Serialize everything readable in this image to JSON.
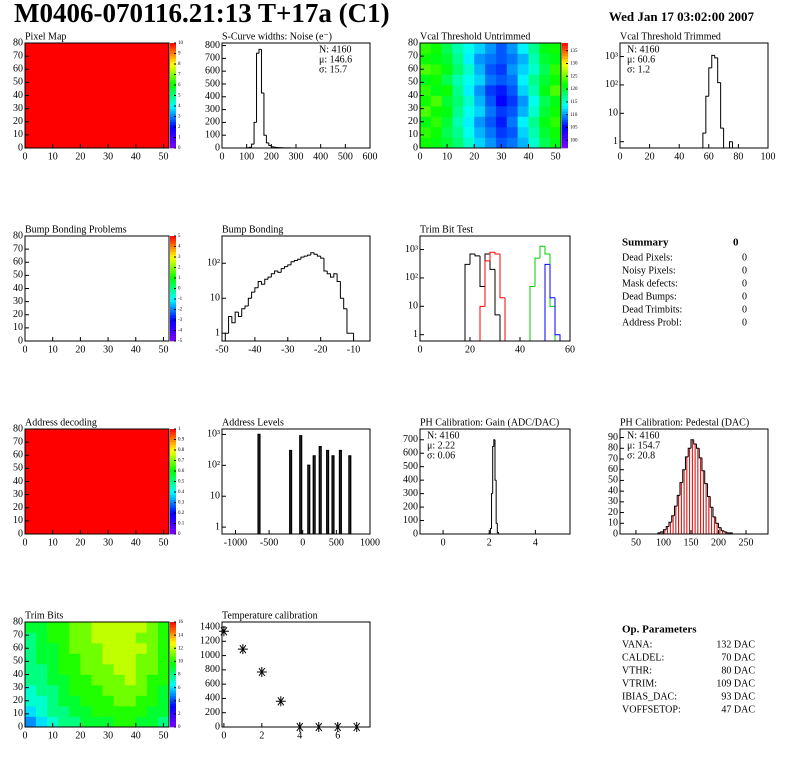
{
  "title": "M0406-070116.21:13 T+17a (C1)",
  "date": "Wed Jan 17 03:02:00 2007",
  "chart_data": [
    {
      "type": "heatmap",
      "title": "Pixel Map",
      "xlim": [
        0,
        52
      ],
      "ylim": [
        0,
        80
      ],
      "xticks": [
        0,
        10,
        20,
        30,
        40,
        50
      ],
      "yticks": [
        0,
        10,
        20,
        30,
        40,
        50,
        60,
        70,
        80
      ],
      "zlim": [
        0,
        10
      ],
      "zticks": [
        0,
        1,
        2,
        3,
        4,
        5,
        6,
        7,
        8,
        9,
        10
      ],
      "z": [
        [
          10
        ]
      ]
    },
    {
      "type": "histogram",
      "title": "S-Curve widths: Noise (e⁻)",
      "xlim": [
        0,
        600
      ],
      "ylim": [
        0,
        820
      ],
      "xticks": [
        0,
        100,
        200,
        300,
        400,
        500,
        600
      ],
      "yticks": [
        0,
        100,
        200,
        300,
        400,
        500,
        600,
        700,
        800
      ],
      "stats": [
        "N: 4160",
        "μ: 146.6",
        "σ: 15.7"
      ],
      "stats_corner": "right",
      "bins": [
        90,
        100,
        110,
        120,
        130,
        140,
        150,
        160,
        170,
        180,
        190,
        200,
        210,
        220,
        230,
        240,
        250,
        260,
        270,
        280,
        290,
        300
      ],
      "series": [
        {
          "color": "#000000",
          "values": [
            0,
            2,
            5,
            30,
            200,
            740,
            770,
            430,
            100,
            40,
            20,
            10,
            6,
            4,
            3,
            2,
            1,
            1,
            1,
            0,
            0
          ]
        }
      ]
    },
    {
      "type": "heatmap",
      "title": "Vcal Threshold Untrimmed",
      "xlim": [
        0,
        52
      ],
      "ylim": [
        0,
        80
      ],
      "xticks": [
        0,
        10,
        20,
        30,
        40,
        50
      ],
      "yticks": [
        0,
        10,
        20,
        30,
        40,
        50,
        60,
        70,
        80
      ],
      "zlim": [
        97,
        138
      ],
      "zticks": [
        100,
        105,
        110,
        115,
        120,
        125,
        130,
        135
      ],
      "z": [
        [
          122,
          121,
          120,
          118,
          115,
          112,
          110,
          108,
          109,
          111,
          115,
          119,
          121
        ],
        [
          123,
          122,
          119,
          117,
          114,
          111,
          109,
          107,
          108,
          112,
          116,
          120,
          122
        ],
        [
          121,
          123,
          120,
          116,
          113,
          110,
          108,
          106,
          109,
          113,
          117,
          121,
          123
        ],
        [
          124,
          122,
          121,
          117,
          114,
          112,
          109,
          107,
          108,
          111,
          115,
          120,
          122
        ],
        [
          122,
          124,
          120,
          118,
          115,
          111,
          108,
          105,
          107,
          110,
          114,
          119,
          121
        ],
        [
          123,
          121,
          122,
          117,
          113,
          110,
          107,
          106,
          108,
          112,
          116,
          121,
          124
        ],
        [
          121,
          122,
          119,
          116,
          114,
          112,
          109,
          108,
          109,
          113,
          117,
          120,
          122
        ],
        [
          124,
          123,
          121,
          118,
          115,
          111,
          108,
          107,
          110,
          112,
          115,
          119,
          123
        ],
        [
          122,
          121,
          120,
          117,
          113,
          110,
          109,
          108,
          109,
          111,
          116,
          120,
          121
        ],
        [
          123,
          122,
          119,
          116,
          114,
          112,
          110,
          108,
          110,
          113,
          117,
          121,
          122
        ]
      ]
    },
    {
      "type": "histogram",
      "title": "Vcal Threshold Trimmed",
      "log": true,
      "xlim": [
        0,
        100
      ],
      "ylim": [
        0.6,
        3000
      ],
      "xticks": [
        0,
        20,
        40,
        60,
        80,
        100
      ],
      "yticks": [
        1,
        10,
        {
          "value": 100,
          "label": "10²"
        },
        {
          "value": 1000,
          "label": "10³"
        }
      ],
      "stats": [
        "N: 4160",
        "μ: 60.6",
        "σ:  1.2"
      ],
      "stats_corner": "left",
      "bins": [
        50,
        52,
        54,
        56,
        58,
        60,
        62,
        64,
        66,
        68,
        70,
        72,
        74,
        76,
        78,
        80
      ],
      "series": [
        {
          "color": "#000000",
          "values": [
            0,
            0,
            0,
            2,
            40,
            400,
            1100,
            900,
            120,
            3,
            0,
            0,
            1,
            0,
            0
          ]
        }
      ]
    },
    {
      "type": "heatmap",
      "title": "Bump Bonding Problems",
      "xlim": [
        0,
        52
      ],
      "ylim": [
        0,
        80
      ],
      "xticks": [
        0,
        10,
        20,
        30,
        40,
        50
      ],
      "yticks": [
        0,
        10,
        20,
        30,
        40,
        50,
        60,
        70,
        80
      ],
      "zlim": [
        -5,
        5
      ],
      "zticks": [
        -5,
        -4,
        -3,
        -2,
        -1,
        0,
        1,
        2,
        3,
        4,
        5
      ],
      "z": []
    },
    {
      "type": "histogram",
      "title": "Bump Bonding",
      "log": true,
      "xlim": [
        -50,
        -5
      ],
      "ylim": [
        0.6,
        600
      ],
      "xticks": [
        -50,
        -40,
        -30,
        -20,
        -10
      ],
      "yticks": [
        1,
        10,
        {
          "value": 100,
          "label": "10²"
        }
      ],
      "bins": [
        -49,
        -48,
        -47,
        -46,
        -45,
        -44,
        -43,
        -42,
        -41,
        -40,
        -39,
        -38,
        -37,
        -36,
        -35,
        -34,
        -33,
        -32,
        -31,
        -30,
        -29,
        -28,
        -27,
        -26,
        -25,
        -24,
        -23,
        -22,
        -21,
        -20,
        -19,
        -18,
        -17,
        -16,
        -15,
        -14,
        -13,
        -12,
        -11,
        -10,
        -9
      ],
      "series": [
        {
          "color": "#000000",
          "values": [
            1,
            3,
            2,
            4,
            3,
            5,
            6,
            10,
            15,
            20,
            30,
            25,
            35,
            40,
            50,
            60,
            55,
            70,
            80,
            90,
            110,
            120,
            130,
            150,
            160,
            170,
            200,
            180,
            160,
            140,
            60,
            50,
            40,
            50,
            30,
            10,
            5,
            1,
            1,
            0
          ]
        }
      ]
    },
    {
      "type": "histogram",
      "title": "Trim Bit Test",
      "log": true,
      "xlim": [
        0,
        60
      ],
      "ylim": [
        0.6,
        3000
      ],
      "xticks": [
        0,
        20,
        40,
        60
      ],
      "yticks": [
        1,
        10,
        {
          "value": 100,
          "label": "10²"
        },
        {
          "value": 1000,
          "label": "10³"
        }
      ],
      "bins": [
        14,
        16,
        18,
        20,
        22,
        24,
        26,
        28,
        30,
        32,
        34,
        36,
        38,
        40,
        42,
        44,
        46,
        48,
        50,
        52,
        54,
        56
      ],
      "series": [
        {
          "color": "#000000",
          "values": [
            0,
            0,
            300,
            700,
            600,
            50,
            700,
            200,
            5,
            0,
            0,
            0,
            0,
            0,
            0,
            0,
            0,
            0,
            0,
            0,
            0
          ]
        },
        {
          "color": "#ff0000",
          "values": [
            0,
            0,
            0,
            0,
            0,
            10,
            400,
            800,
            700,
            20,
            0,
            0,
            0,
            0,
            0,
            0,
            0,
            0,
            0,
            0,
            0
          ]
        },
        {
          "color": "#00cc00",
          "values": [
            0,
            0,
            0,
            0,
            0,
            0,
            0,
            0,
            0,
            0,
            0,
            0,
            0,
            0,
            0,
            50,
            500,
            1300,
            700,
            10,
            0
          ]
        },
        {
          "color": "#0000ff",
          "values": [
            0,
            0,
            0,
            0,
            0,
            0,
            0,
            0,
            0,
            0,
            0,
            0,
            0,
            0,
            0,
            0,
            0,
            0,
            300,
            20,
            1
          ]
        }
      ]
    },
    {
      "type": "heatmap",
      "title": "Address decoding",
      "xlim": [
        0,
        52
      ],
      "ylim": [
        0,
        80
      ],
      "xticks": [
        0,
        10,
        20,
        30,
        40,
        50
      ],
      "yticks": [
        0,
        10,
        20,
        30,
        40,
        50,
        60,
        70,
        80
      ],
      "zlim": [
        0,
        1
      ],
      "zticks": [
        0,
        0.1,
        0.2,
        0.3,
        0.4,
        0.5,
        0.6,
        0.7,
        0.8,
        0.9,
        1
      ],
      "z": [
        [
          1
        ]
      ]
    },
    {
      "type": "spikes",
      "title": "Address Levels",
      "log": true,
      "xlim": [
        -1200,
        1000
      ],
      "ylim": [
        0.6,
        1500
      ],
      "xticks": [
        -1000,
        -500,
        0,
        500,
        1000
      ],
      "yticks": [
        1,
        10,
        {
          "value": 100,
          "label": "10²"
        },
        {
          "value": 1000,
          "label": "10³"
        }
      ],
      "x": [
        -650,
        -180,
        -30,
        90,
        170,
        260,
        370,
        450,
        560,
        700
      ],
      "values": [
        1000,
        300,
        900,
        100,
        200,
        400,
        300,
        200,
        300,
        200
      ]
    },
    {
      "type": "histogram",
      "title": "PH Calibration: Gain (ADC/DAC)",
      "xlim": [
        -1,
        5.5
      ],
      "ylim": [
        0,
        780
      ],
      "xticks": [
        0,
        2,
        4
      ],
      "yticks": [
        0,
        100,
        200,
        300,
        400,
        500,
        600,
        700
      ],
      "stats": [
        "N: 4160",
        "μ: 2.22",
        "σ: 0.06"
      ],
      "stats_corner": "left",
      "bins": [
        2.0,
        2.05,
        2.1,
        2.15,
        2.2,
        2.25,
        2.3,
        2.35,
        2.4
      ],
      "series": [
        {
          "color": "#000000",
          "values": [
            5,
            40,
            300,
            650,
            700,
            400,
            80,
            10
          ]
        }
      ]
    },
    {
      "type": "histogram",
      "title": "PH Calibration: Pedestal (DAC)",
      "xlim": [
        21,
        290
      ],
      "ylim": [
        0,
        98
      ],
      "xticks": [
        50,
        100,
        150,
        200,
        250
      ],
      "yticks": [
        0,
        10,
        20,
        30,
        40,
        50,
        60,
        70,
        80,
        90
      ],
      "stats": [
        "N: 4160",
        {
          "text": "μ: 154.7",
          "color": "#e00000"
        },
        {
          "text": "σ: 20.8",
          "color": "#e00000"
        }
      ],
      "stats_corner": "left",
      "inner_color": "#d00000",
      "bins": [
        90,
        95,
        100,
        105,
        110,
        115,
        120,
        125,
        130,
        135,
        140,
        145,
        150,
        155,
        160,
        165,
        170,
        175,
        180,
        185,
        190,
        195,
        200,
        205,
        210,
        215,
        220,
        225
      ],
      "series": [
        {
          "color": "#000000",
          "values": [
            1,
            2,
            4,
            7,
            11,
            17,
            26,
            36,
            48,
            60,
            72,
            80,
            88,
            84,
            80,
            71,
            59,
            47,
            35,
            25,
            16,
            10,
            6,
            3,
            2,
            1,
            1
          ]
        }
      ]
    },
    {
      "type": "heatmap",
      "title": "Trim Bits",
      "xlim": [
        0,
        52
      ],
      "ylim": [
        0,
        80
      ],
      "xticks": [
        0,
        10,
        20,
        30,
        40,
        50
      ],
      "yticks": [
        0,
        10,
        20,
        30,
        40,
        50,
        60,
        70,
        80
      ],
      "zlim": [
        0,
        16
      ],
      "zticks": [
        0,
        2,
        4,
        6,
        8,
        10,
        12,
        14,
        16
      ],
      "z": [
        [
          5,
          6,
          7,
          8,
          8,
          9,
          9,
          9,
          10,
          10,
          9,
          9,
          8
        ],
        [
          6,
          7,
          8,
          8,
          9,
          9,
          10,
          10,
          10,
          10,
          10,
          9,
          9
        ],
        [
          7,
          7,
          8,
          9,
          9,
          10,
          10,
          10,
          11,
          11,
          10,
          10,
          9
        ],
        [
          7,
          8,
          8,
          9,
          10,
          10,
          10,
          11,
          11,
          11,
          11,
          10,
          9
        ],
        [
          8,
          8,
          9,
          9,
          10,
          10,
          11,
          11,
          11,
          12,
          11,
          10,
          10
        ],
        [
          8,
          8,
          9,
          10,
          10,
          11,
          11,
          11,
          12,
          12,
          11,
          11,
          10
        ],
        [
          8,
          9,
          9,
          10,
          10,
          11,
          11,
          12,
          12,
          12,
          11,
          11,
          10
        ],
        [
          8,
          9,
          9,
          10,
          11,
          11,
          11,
          12,
          12,
          12,
          12,
          11,
          10
        ],
        [
          8,
          9,
          10,
          10,
          11,
          11,
          12,
          12,
          12,
          12,
          11,
          11,
          10
        ],
        [
          9,
          9,
          10,
          10,
          11,
          11,
          12,
          12,
          12,
          12,
          12,
          11,
          10
        ]
      ]
    },
    {
      "type": "scatter",
      "title": "Temperature calibration",
      "xlim": [
        -0.1,
        7.7
      ],
      "ylim": [
        0,
        1470
      ],
      "xticks": [
        0,
        2,
        4,
        6
      ],
      "yticks": [
        0,
        200,
        400,
        600,
        800,
        1000,
        1200,
        1400
      ],
      "x": [
        0,
        1,
        2,
        3,
        4,
        5,
        6,
        7
      ],
      "values": [
        1340,
        1090,
        770,
        360,
        0,
        0,
        0,
        0
      ]
    }
  ],
  "summary": {
    "title": "Summary",
    "value": 0,
    "rows": [
      {
        "label": "Dead Pixels:",
        "value": 0
      },
      {
        "label": "Noisy Pixels:",
        "value": 0
      },
      {
        "label": "Mask defects:",
        "value": 0
      },
      {
        "label": "Dead Bumps:",
        "value": 0
      },
      {
        "label": "Dead Trimbits:",
        "value": 0
      },
      {
        "label": "Address Probl:",
        "value": 0
      }
    ]
  },
  "op_parameters": {
    "title": "Op. Parameters",
    "rows": [
      {
        "label": "VANA:",
        "value": "132 DAC"
      },
      {
        "label": "CALDEL:",
        "value": "70 DAC"
      },
      {
        "label": "VTHR:",
        "value": "80 DAC"
      },
      {
        "label": "VTRIM:",
        "value": "109 DAC"
      },
      {
        "label": "IBIAS_DAC:",
        "value": "93 DAC"
      },
      {
        "label": "VOFFSETOP:",
        "value": "47 DAC"
      }
    ]
  }
}
